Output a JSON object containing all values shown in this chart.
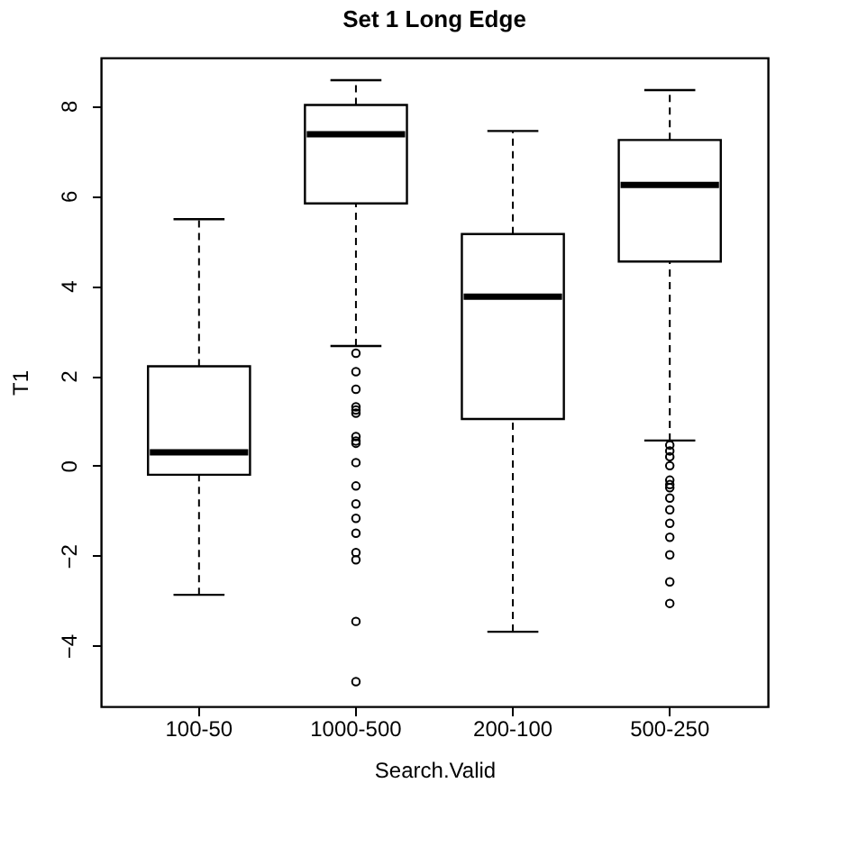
{
  "chart_data": {
    "type": "box",
    "title": "Set 1 Long Edge",
    "xlabel": "Search.Valid",
    "ylabel": "T1",
    "categories": [
      "100-50",
      "1000-500",
      "200-100",
      "500-250"
    ],
    "boxes": [
      {
        "low": -2.87,
        "q1": -0.2,
        "median": 0.3,
        "q3": 2.21,
        "high": 5.48
      },
      {
        "low": 2.66,
        "q1": 5.83,
        "median": 7.37,
        "q3": 8.02,
        "high": 8.57,
        "outliers": [
          2.5,
          2.09,
          1.7,
          1.31,
          1.24,
          1.17,
          0.65,
          0.55,
          0.5,
          0.07,
          -0.45,
          -0.85,
          -1.17,
          -1.5,
          -1.93,
          -2.09,
          -3.46,
          -4.8
        ]
      },
      {
        "low": -3.69,
        "q1": 1.04,
        "median": 3.76,
        "q3": 5.15,
        "high": 7.44
      },
      {
        "low": 0.56,
        "q1": 4.54,
        "median": 6.24,
        "q3": 7.24,
        "high": 8.35,
        "outliers": [
          0.46,
          0.33,
          0.2,
          0.0,
          -0.32,
          -0.42,
          -0.49,
          -0.72,
          -0.98,
          -1.28,
          -1.59,
          -1.98,
          -2.58,
          -3.06
        ]
      }
    ],
    "color": "#ffffff",
    "ylim": [
      -5.35,
      9.07
    ],
    "yticks": [
      -4,
      -2,
      0,
      2,
      4,
      6,
      8
    ],
    "grid": false
  }
}
